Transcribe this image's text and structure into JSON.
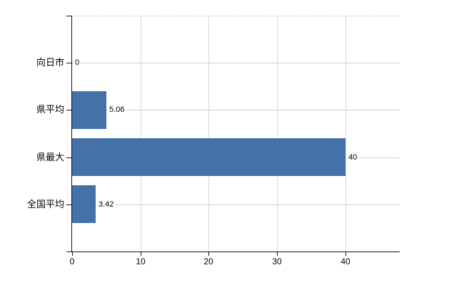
{
  "chart_data": {
    "type": "bar",
    "orientation": "horizontal",
    "title": "",
    "xlabel": "",
    "ylabel": "",
    "categories": [
      "向日市",
      "県平均",
      "県最大",
      "全国平均"
    ],
    "values": [
      0,
      5.06,
      40,
      3.42
    ],
    "value_labels": [
      "0",
      "5.06",
      "40",
      "3.42"
    ],
    "x_tick_values": [
      0,
      10,
      20,
      30,
      40
    ],
    "x_tick_labels": [
      "0",
      "10",
      "20",
      "30",
      "40"
    ],
    "xlim": [
      0,
      48
    ],
    "grid": true,
    "legend": false,
    "colors": {
      "bar": "#4472a8",
      "grid_horizontal": "#ccd3cb",
      "grid_vertical": "#d9d9d9",
      "plot_border_top": "#c9c9c9",
      "axis": "#111111",
      "text": "#000000",
      "background": "#ffffff"
    }
  }
}
